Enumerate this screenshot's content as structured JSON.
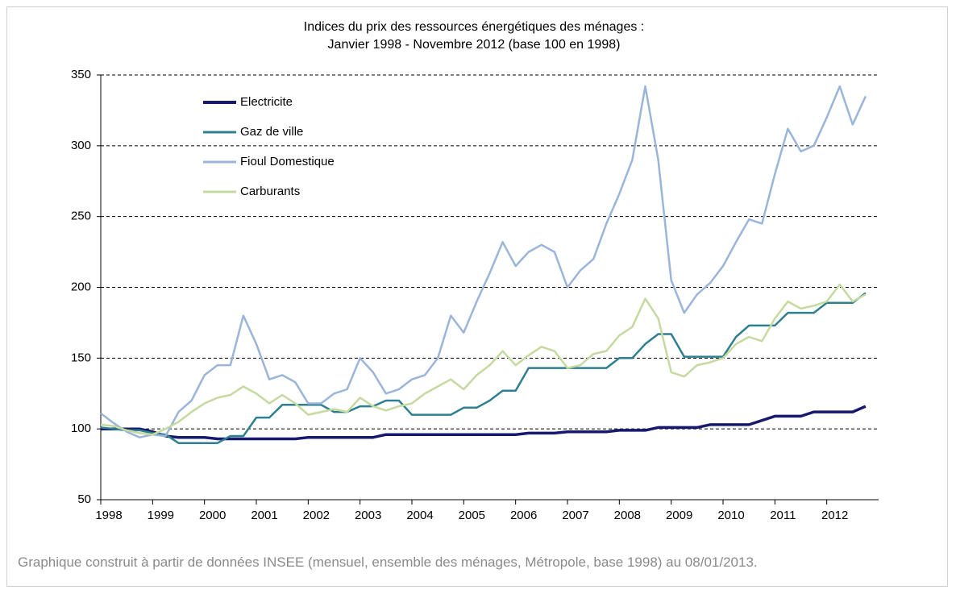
{
  "chart_data": {
    "type": "line",
    "title": "Indices du prix des ressources énergétiques des ménages :",
    "subtitle": "Janvier 1998 - Novembre 2012 (base 100 en 1998)",
    "note": "Graphique construit à partir de données INSEE (mensuel, ensemble des ménages, Métropole, base 1998) au 08/01/2013.",
    "x": [
      1998,
      1998.25,
      1998.5,
      1998.75,
      1999,
      1999.25,
      1999.5,
      1999.75,
      2000,
      2000.25,
      2000.5,
      2000.75,
      2001,
      2001.25,
      2001.5,
      2001.75,
      2002,
      2002.25,
      2002.5,
      2002.75,
      2003,
      2003.25,
      2003.5,
      2003.75,
      2004,
      2004.25,
      2004.5,
      2004.75,
      2005,
      2005.25,
      2005.5,
      2005.75,
      2006,
      2006.25,
      2006.5,
      2006.75,
      2007,
      2007.25,
      2007.5,
      2007.75,
      2008,
      2008.25,
      2008.5,
      2008.75,
      2009,
      2009.25,
      2009.5,
      2009.75,
      2010,
      2010.25,
      2010.5,
      2010.75,
      2011,
      2011.25,
      2011.5,
      2011.75,
      2012,
      2012.25,
      2012.5,
      2012.75
    ],
    "series": [
      {
        "name": "Electricite",
        "color": "#16196e",
        "width": 3.5,
        "values": [
          100,
          100,
          100,
          100,
          98,
          95,
          94,
          94,
          94,
          93,
          93,
          93,
          93,
          93,
          93,
          93,
          94,
          94,
          94,
          94,
          94,
          94,
          96,
          96,
          96,
          96,
          96,
          96,
          96,
          96,
          96,
          96,
          96,
          97,
          97,
          97,
          98,
          98,
          98,
          98,
          99,
          99,
          99,
          101,
          101,
          101,
          101,
          103,
          103,
          103,
          103,
          106,
          109,
          109,
          109,
          112,
          112,
          112,
          112,
          116
        ]
      },
      {
        "name": "Gaz de ville",
        "color": "#2e7f8f",
        "width": 2.5,
        "values": [
          101,
          100,
          99,
          99,
          97,
          96,
          90,
          90,
          90,
          90,
          95,
          95,
          108,
          108,
          117,
          117,
          117,
          117,
          112,
          112,
          116,
          116,
          120,
          120,
          110,
          110,
          110,
          110,
          115,
          115,
          120,
          127,
          127,
          143,
          143,
          143,
          143,
          143,
          143,
          143,
          150,
          150,
          160,
          167,
          167,
          151,
          151,
          151,
          151,
          165,
          173,
          173,
          173,
          182,
          182,
          182,
          189,
          189,
          189,
          196
        ]
      },
      {
        "name": "Fioul Domestique",
        "color": "#9ab5d9",
        "width": 2.5,
        "values": [
          111,
          104,
          98,
          94,
          96,
          95,
          112,
          120,
          138,
          145,
          145,
          180,
          160,
          135,
          138,
          133,
          118,
          118,
          125,
          128,
          150,
          140,
          125,
          128,
          135,
          138,
          150,
          180,
          168,
          190,
          210,
          232,
          215,
          225,
          230,
          225,
          200,
          212,
          220,
          245,
          266,
          290,
          342,
          290,
          205,
          182,
          195,
          203,
          215,
          232,
          248,
          245,
          280,
          312,
          296,
          300,
          320,
          342,
          315,
          335
        ]
      },
      {
        "name": "Carburants",
        "color": "#c5d9a0",
        "width": 2.5,
        "values": [
          103,
          102,
          99,
          97,
          96,
          100,
          105,
          112,
          118,
          122,
          124,
          130,
          125,
          118,
          124,
          118,
          110,
          112,
          114,
          112,
          122,
          116,
          113,
          116,
          118,
          125,
          130,
          135,
          128,
          138,
          145,
          155,
          145,
          152,
          158,
          155,
          143,
          145,
          153,
          155,
          166,
          172,
          192,
          178,
          140,
          137,
          145,
          147,
          150,
          160,
          165,
          162,
          178,
          190,
          185,
          187,
          190,
          202,
          190,
          195
        ]
      }
    ],
    "xlim": [
      1998,
      2013
    ],
    "xticks": [
      1998,
      1999,
      2000,
      2001,
      2002,
      2003,
      2004,
      2005,
      2006,
      2007,
      2008,
      2009,
      2010,
      2011,
      2012
    ],
    "ylim": [
      50,
      350
    ],
    "yticks": [
      50,
      100,
      150,
      200,
      250,
      300,
      350
    ],
    "grid": true,
    "legend": "upper left"
  }
}
